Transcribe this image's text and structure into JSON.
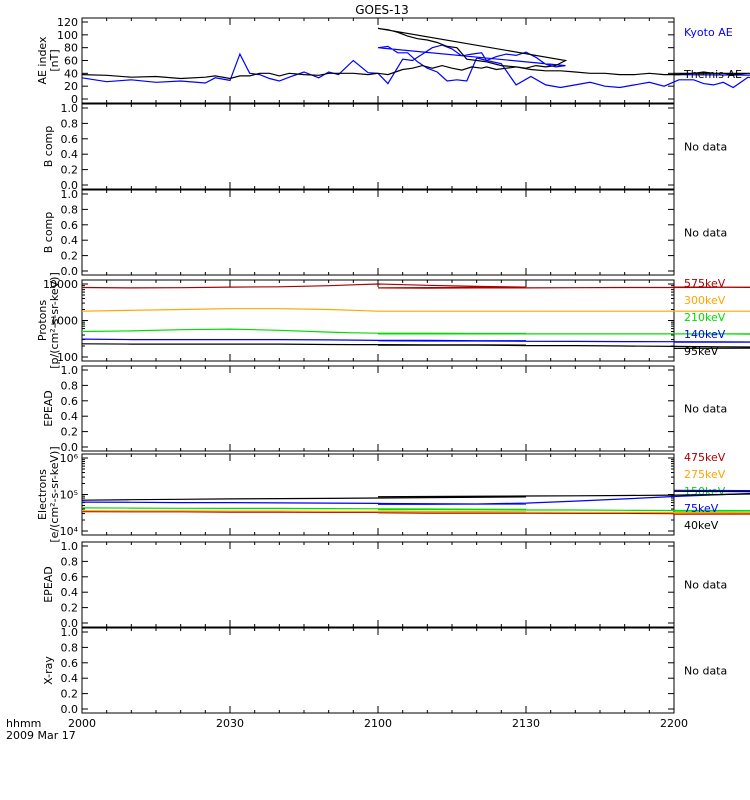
{
  "figure": {
    "title": "GOES-13",
    "time_axis": {
      "label": "hhmm",
      "date": "2009 Mar 17",
      "ticks": [
        "2000",
        "2030",
        "2100",
        "2130",
        "2200"
      ]
    },
    "colors": {
      "black": "#000000",
      "blue": "#0000ff",
      "green": "#00dd00",
      "orange": "#ffa500",
      "red": "#aa0000"
    }
  },
  "chart_data": [
    {
      "type": "line",
      "ylabel": "AE index\n[nT]",
      "ylim": [
        0,
        120
      ],
      "yticks": [
        "0",
        "20",
        "40",
        "60",
        "80",
        "100",
        "120"
      ],
      "legend_position": "right",
      "x": [
        2000.0,
        2005.0,
        2010.0,
        2015.0,
        2020.0,
        2025.0,
        2027.0,
        2030.0,
        2032.0,
        2034.0,
        2036.0,
        2038.0,
        2040.0,
        2042.0,
        2045.0,
        2048.0,
        2050.0,
        2052.0,
        2055.0,
        2058.0,
        2060.0,
        2062.0,
        2065.0,
        2067.0,
        2069.0,
        2071.0,
        2073.0,
        2075.0,
        2077.0,
        2079.0,
        2081.0,
        2082.0,
        2084.0,
        2086.0,
        2088.0,
        2090.0,
        2092.0,
        2094.0,
        2096.0,
        2098.0,
        2100.0,
        2102.0,
        2104.0,
        2106.0,
        2108.0,
        2110.0,
        2112.0,
        2114.0,
        2116.0,
        2118.0,
        2120.0,
        2122.0,
        2125.0,
        2128.0,
        2131.0,
        2134.0,
        2137.0,
        2140.0,
        2143.0,
        2146.0,
        2149.0,
        2152.0,
        2155.0,
        2158.0,
        2161.0,
        2164.0,
        2166.0,
        2168.0,
        2170.0,
        2172.0,
        2175.0,
        2178.0,
        2181.0,
        2185.0,
        2188.0,
        2192.0,
        2195.0,
        2198.0,
        2200.0
      ],
      "series": [
        {
          "name": "Kyoto AE",
          "color": "#0000ff",
          "values": [
            33,
            27,
            30,
            26,
            28,
            25,
            33,
            29,
            70,
            40,
            38,
            32,
            28,
            34,
            42,
            33,
            42,
            38,
            60,
            41,
            40,
            24,
            62,
            60,
            70,
            80,
            84,
            78,
            67,
            70,
            72,
            60,
            66,
            70,
            68,
            73,
            65,
            54,
            50,
            52,
            80,
            82,
            72,
            72,
            58,
            48,
            42,
            28,
            30,
            28,
            64,
            60,
            55,
            22,
            35,
            22,
            18,
            22,
            26,
            20,
            18,
            22,
            26,
            20,
            30,
            30,
            24,
            22,
            26,
            18,
            34,
            30,
            26,
            28,
            37,
            34,
            40,
            36,
            38
          ]
        },
        {
          "name": "Themis AE",
          "color": "#000000",
          "values": [
            38,
            37,
            34,
            35,
            32,
            34,
            36,
            32,
            36,
            36,
            40,
            40,
            36,
            40,
            38,
            37,
            40,
            40,
            40,
            38,
            40,
            38,
            46,
            48,
            52,
            48,
            52,
            48,
            45,
            50,
            48,
            50,
            46,
            48,
            50,
            48,
            52,
            50,
            52,
            60,
            110,
            108,
            104,
            98,
            94,
            92,
            88,
            82,
            80,
            62,
            60,
            58,
            52,
            50,
            46,
            44,
            44,
            42,
            40,
            40,
            38,
            38,
            40,
            38,
            38,
            40,
            42,
            40,
            40,
            38,
            40,
            40,
            38,
            40,
            40,
            40,
            36,
            40,
            40
          ]
        }
      ]
    },
    {
      "type": "line",
      "ylabel": "B comp",
      "ylim": [
        0,
        1
      ],
      "yticks": [
        "0.0",
        "0.2",
        "0.4",
        "0.6",
        "0.8",
        "1.0"
      ],
      "status": "No data",
      "series": []
    },
    {
      "type": "line",
      "ylabel": "B comp",
      "ylim": [
        0,
        1
      ],
      "yticks": [
        "0.0",
        "0.2",
        "0.4",
        "0.6",
        "0.8",
        "1.0"
      ],
      "status": "No data",
      "series": []
    },
    {
      "type": "line",
      "scale": "log",
      "ylabel": "Protons\n[p/(cm²-s-sr-keV)]",
      "ylim": [
        100,
        10000
      ],
      "yticks": [
        "100",
        "1000",
        "10000"
      ],
      "legend_position": "right",
      "x": [
        2000,
        2010,
        2020,
        2030,
        2040,
        2050,
        2055,
        2060,
        2070,
        2080,
        2090,
        2100,
        2110,
        2120,
        2130,
        2140,
        2150,
        2160,
        2170,
        2180,
        2190,
        2200
      ],
      "series": [
        {
          "name": "575keV",
          "color": "#aa0000",
          "values": [
            8000,
            7800,
            7900,
            8200,
            8400,
            9000,
            9500,
            10000,
            9200,
            8600,
            8200,
            7800,
            7700,
            7800,
            7800,
            7900,
            8000,
            8000,
            8100,
            8000,
            8100,
            8200
          ]
        },
        {
          "name": "300keV",
          "color": "#ffa500",
          "values": [
            1800,
            1900,
            2000,
            2100,
            2100,
            2000,
            1900,
            1800,
            1800,
            1800,
            1800,
            1800,
            1800,
            1800,
            1800,
            1800,
            1800,
            1800,
            1800,
            1800,
            1800,
            1800
          ]
        },
        {
          "name": "210keV",
          "color": "#00dd00",
          "values": [
            500,
            520,
            560,
            580,
            540,
            480,
            460,
            450,
            450,
            440,
            440,
            430,
            430,
            430,
            430,
            430,
            430,
            430,
            430,
            420,
            430,
            430
          ]
        },
        {
          "name": "140keV",
          "color": "#0000ff",
          "values": [
            310,
            300,
            300,
            300,
            300,
            295,
            290,
            285,
            285,
            280,
            280,
            280,
            275,
            275,
            270,
            268,
            265,
            262,
            260,
            258,
            256,
            255
          ]
        },
        {
          "name": "95keV",
          "color": "#000000",
          "values": [
            230,
            225,
            225,
            225,
            225,
            220,
            218,
            218,
            215,
            215,
            212,
            212,
            210,
            210,
            205,
            205,
            200,
            195,
            190,
            185,
            178,
            172
          ]
        }
      ]
    },
    {
      "type": "line",
      "ylabel": "EPEAD",
      "ylim": [
        0,
        1
      ],
      "yticks": [
        "0.0",
        "0.2",
        "0.4",
        "0.6",
        "0.8",
        "1.0"
      ],
      "status": "No data",
      "series": []
    },
    {
      "type": "line",
      "scale": "log",
      "ylabel": "Electrons\n[e/(cm²-s-sr-keV)]",
      "ylim": [
        10000,
        1000000
      ],
      "yticks": [
        "10⁴",
        "10⁵",
        "10⁶"
      ],
      "legend_position": "right",
      "x": [
        2000,
        2010,
        2020,
        2030,
        2040,
        2050,
        2060,
        2070,
        2080,
        2090,
        2100,
        2110,
        2120,
        2130,
        2140,
        2150,
        2160,
        2170,
        2180,
        2190,
        2200
      ],
      "series": [
        {
          "name": "475keV",
          "color": "#aa0000",
          "values": [
            34000,
            33500,
            33500,
            33000,
            33000,
            32500,
            32500,
            32000,
            32000,
            31500,
            31500,
            31000,
            31000,
            31000,
            30500,
            30500,
            30000,
            30000,
            29500,
            29500,
            29000
          ]
        },
        {
          "name": "275keV",
          "color": "#ffa500",
          "values": [
            36000,
            35500,
            35500,
            35000,
            35000,
            34500,
            34500,
            34000,
            34000,
            33500,
            33500,
            33000,
            33000,
            33000,
            32500,
            32500,
            32000,
            32000,
            31500,
            31500,
            31000
          ]
        },
        {
          "name": "150keV",
          "color": "#00dd00",
          "values": [
            43000,
            42500,
            42000,
            41500,
            41500,
            41000,
            40500,
            40000,
            39500,
            39000,
            38500,
            38500,
            38000,
            37500,
            37500,
            37000,
            36500,
            36500,
            36000,
            35500,
            35000
          ]
        },
        {
          "name": "75keV",
          "color": "#0000ff",
          "values": [
            62000,
            61000,
            60000,
            60000,
            59000,
            58000,
            57000,
            56000,
            55000,
            55000,
            54000,
            54000,
            55000,
            58000,
            66000,
            76000,
            88000,
            100000,
            112000,
            125000,
            130000
          ]
        },
        {
          "name": "40keV",
          "color": "#000000",
          "values": [
            70000,
            72000,
            74000,
            76000,
            77000,
            78000,
            80000,
            82000,
            84000,
            86000,
            87000,
            88000,
            90000,
            91000,
            92000,
            94000,
            96000,
            100000,
            106000,
            116000,
            122000
          ]
        }
      ]
    },
    {
      "type": "line",
      "ylabel": "EPEAD",
      "ylim": [
        0,
        1
      ],
      "yticks": [
        "0.0",
        "0.2",
        "0.4",
        "0.6",
        "0.8",
        "1.0"
      ],
      "status": "No data",
      "series": []
    },
    {
      "type": "line",
      "ylabel": "X-ray",
      "ylim": [
        0,
        1
      ],
      "yticks": [
        "0.0",
        "0.2",
        "0.4",
        "0.6",
        "0.8",
        "1.0"
      ],
      "status": "No data",
      "series": []
    }
  ]
}
